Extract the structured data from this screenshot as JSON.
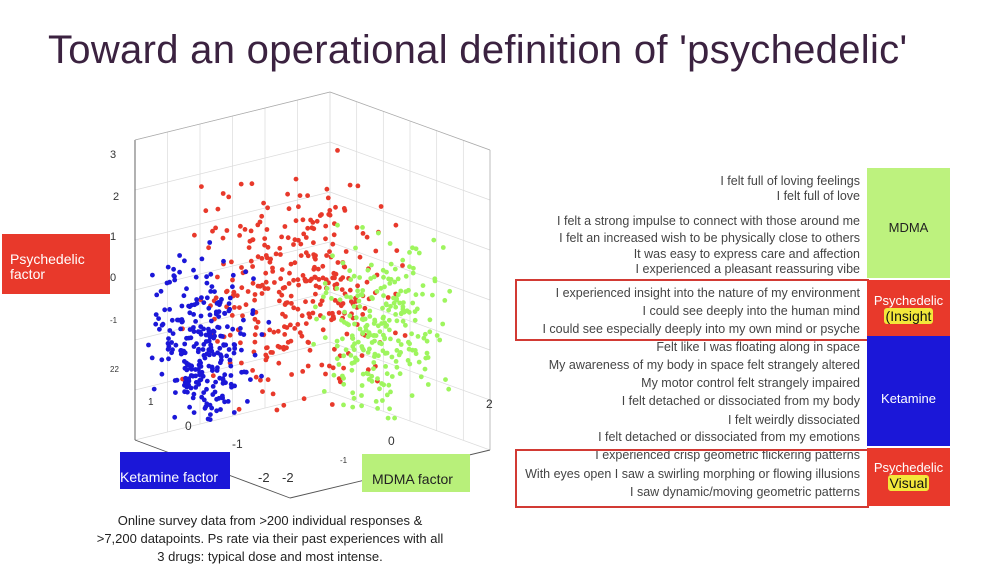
{
  "slide": {
    "title": "Toward an operational definition of 'psychedelic'",
    "caption_lines": [
      "Online survey data from >200 individual responses &",
      ">7,200 datapoints. Ps rate via their past experiences with all",
      "3 drugs: typical dose and most intense."
    ]
  },
  "factors": {
    "psychedelic": "Psychedelic factor",
    "ketamine": "Ketamine factor",
    "mdma": "MDMA factor"
  },
  "colors": {
    "psychedelic": "#e8392b",
    "ketamine": "#1b17d8",
    "mdma": "#9ef55e",
    "title": "#3b2240"
  },
  "chart_data": {
    "type": "scatter",
    "projection": "3d",
    "vertical_ticks": [
      "3",
      "2",
      "1",
      "0",
      "-1",
      "22"
    ],
    "left_depth_ticks": [
      "1",
      "0",
      "-1",
      "-2"
    ],
    "right_depth_ticks": [
      "2",
      "0",
      "-1",
      "-2"
    ],
    "grid": true,
    "series": [
      {
        "name": "Psychedelic",
        "color": "#e8392b",
        "count": 330
      },
      {
        "name": "Ketamine",
        "color": "#1b17d8",
        "count": 290
      },
      {
        "name": "MDMA",
        "color": "#9ef55e",
        "count": 260
      }
    ]
  },
  "items": {
    "mdma": [
      "I felt full of loving feelings",
      "I felt full of love",
      "I felt a strong impulse to connect with those around me",
      "I felt an increased wish to be physically close to others",
      "It was easy to express care and affection",
      "I experienced a pleasant reassuring vibe"
    ],
    "insight": [
      "I experienced insight into the nature of my environment",
      "I could see deeply into the human mind",
      "I could see especially deeply into my own mind or psyche"
    ],
    "ketamine": [
      "Felt like I was floating along in space",
      "My awareness of my body in space felt strangely altered",
      "My motor control felt strangely impaired",
      "I felt detached or dissociated from my body",
      "I felt weirdly dissociated",
      "I felt detached or dissociated from my emotions"
    ],
    "visual": [
      "I experienced crisp geometric flickering patterns",
      "With eyes open I saw a swirling morphing or flowing illusions",
      "I saw dynamic/moving geometric patterns"
    ]
  },
  "categories": {
    "mdma": "MDMA",
    "psy1_line1": "Psychedelic",
    "psy1_line2": "(Insight",
    "ketamine": "Ketamine",
    "psy2_line1": "Psychedelic",
    "psy2_line2": "Visual"
  }
}
